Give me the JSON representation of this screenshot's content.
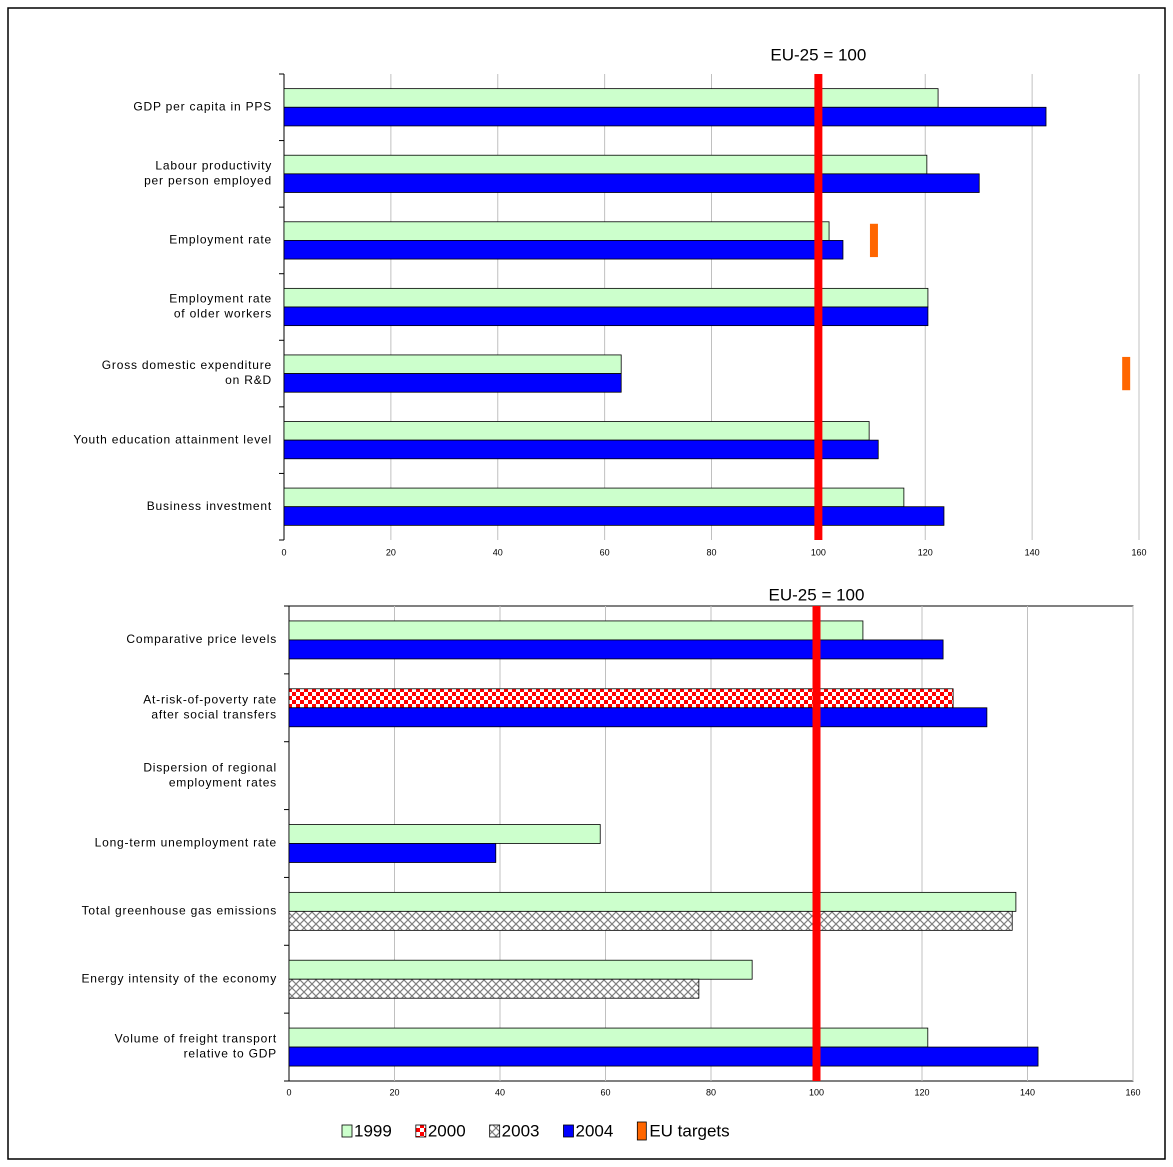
{
  "chart_data": [
    {
      "type": "bar",
      "orientation": "horizontal",
      "categories": [
        [
          "GDP per capita in PPS"
        ],
        [
          "Labour productivity",
          "per person employed"
        ],
        [
          "Employment rate"
        ],
        [
          "Employment rate",
          "of older workers"
        ],
        [
          "Gross domestic expenditure",
          "on R&D"
        ],
        [
          "Youth education attainment level"
        ],
        [
          "Business investment"
        ]
      ],
      "series": [
        {
          "name": "1999",
          "color": "#ccffcc",
          "values": [
            122.4,
            120.3,
            102,
            120.5,
            63.1,
            109.5,
            116
          ]
        },
        {
          "name": "2004",
          "color": "#0000ff",
          "values": [
            142.6,
            130.1,
            104.6,
            120.5,
            63.1,
            111.2,
            123.5
          ]
        },
        {
          "name": "EU targets",
          "color": "#ff6600",
          "type": "marker",
          "values": [
            null,
            null,
            110.4,
            null,
            157.6,
            null,
            null
          ]
        }
      ],
      "xlim": [
        0,
        160
      ],
      "xticks": [
        0,
        20,
        40,
        60,
        80,
        100,
        120,
        140,
        160
      ],
      "grid": true,
      "reference": {
        "value": 100,
        "label": "EU-25 = 100",
        "color": "#ff0000"
      }
    },
    {
      "type": "bar",
      "orientation": "horizontal",
      "categories": [
        [
          "Comparative price levels"
        ],
        [
          "At-risk-of-poverty rate",
          "after social transfers"
        ],
        [
          "Dispersion of regional",
          "employment rates"
        ],
        [
          "Long-term unemployment rate"
        ],
        [
          "Total greenhouse gas emissions"
        ],
        [
          "Energy intensity of the economy"
        ],
        [
          "Volume of freight transport",
          "relative to GDP"
        ]
      ],
      "series": [
        {
          "name": "1999",
          "color": "#ccffcc",
          "values": [
            108.8,
            null,
            null,
            59,
            137.8,
            87.8,
            121.1
          ]
        },
        {
          "name": "2000",
          "color": "#ff0000",
          "pattern": "checker",
          "values": [
            null,
            125.9,
            null,
            null,
            null,
            null,
            null
          ]
        },
        {
          "name": "2003",
          "color": "#808080",
          "pattern": "crosshatch",
          "values": [
            null,
            null,
            null,
            null,
            137.1,
            77.7,
            null
          ]
        },
        {
          "name": "2004",
          "color": "#0000ff",
          "values": [
            124,
            132.3,
            null,
            39.2,
            null,
            null,
            142
          ]
        }
      ],
      "xlim": [
        0,
        160
      ],
      "xticks": [
        0,
        20,
        40,
        60,
        80,
        100,
        120,
        140,
        160
      ],
      "grid": true,
      "frame": true,
      "legend": "bottom",
      "reference": {
        "value": 100,
        "label": "EU-25 = 100",
        "color": "#ff0000"
      }
    }
  ]
}
